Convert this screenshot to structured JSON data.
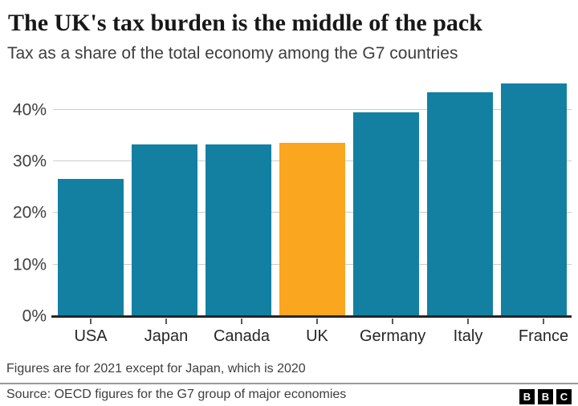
{
  "header": {
    "title": "The UK's tax burden is the middle of the pack",
    "subtitle": "Tax as a share of the total economy among the G7 countries"
  },
  "chart_data": {
    "type": "bar",
    "categories": [
      "USA",
      "Japan",
      "Canada",
      "UK",
      "Germany",
      "Italy",
      "France"
    ],
    "values": [
      26.6,
      33.2,
      33.2,
      33.5,
      39.5,
      43.3,
      45.1
    ],
    "unit": "%",
    "highlight_category": "UK",
    "highlight_index": 3,
    "bar_color": "#1380A1",
    "highlight_color": "#FAA61F",
    "yticks": [
      0,
      10,
      20,
      30,
      40
    ],
    "ytick_labels": [
      "0%",
      "10%",
      "20%",
      "30%",
      "40%"
    ],
    "ylim": [
      0,
      46
    ],
    "grid": true,
    "legend_position": "none",
    "title": "The UK's tax burden is the middle of the pack",
    "subtitle": "Tax as a share of the total economy among the G7 countries",
    "xlabel": "",
    "ylabel": ""
  },
  "footer": {
    "note": "Figures are for 2021 except for Japan, which is 2020",
    "source": "Source: OECD figures for the G7 group of major economies",
    "logo_letters": [
      "B",
      "B",
      "C"
    ]
  }
}
